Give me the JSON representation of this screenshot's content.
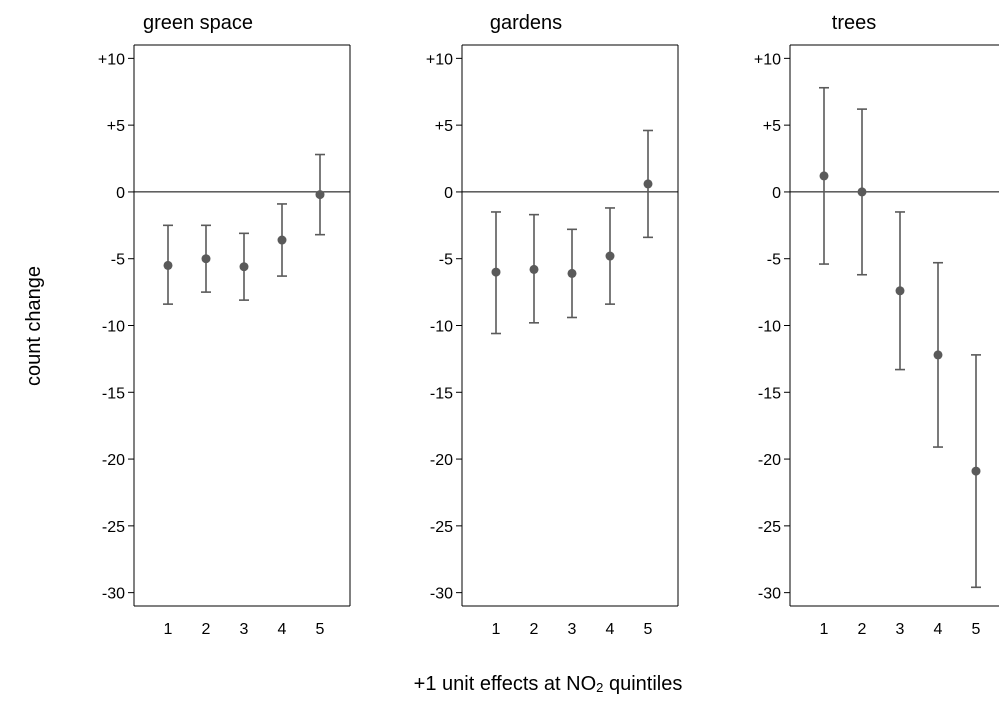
{
  "chart_data": {
    "type": "scatter",
    "subtype": "point-with-error-bars",
    "ylabel": "count change",
    "xlabel_prefix": "+1 unit effects at NO",
    "xlabel_subscript": "2",
    "xlabel_suffix": " quintiles",
    "ylim": [
      -31,
      11
    ],
    "yticks": [
      10,
      5,
      0,
      -5,
      -10,
      -15,
      -20,
      -25,
      -30
    ],
    "ytick_labels": [
      "+10",
      "+5",
      "0",
      "-5",
      "-10",
      "-15",
      "-20",
      "-25",
      "-30"
    ],
    "x": [
      1,
      2,
      3,
      4,
      5
    ],
    "xtick_labels": [
      "1",
      "2",
      "3",
      "4",
      "5"
    ],
    "reference_line": 0,
    "colors": {
      "point": "#5a5a5a",
      "bar": "#5a5a5a",
      "axis": "#000000"
    },
    "panels": [
      {
        "title": "green space",
        "points": [
          {
            "x": 1,
            "y": -5.5,
            "low": -8.4,
            "high": -2.5
          },
          {
            "x": 2,
            "y": -5.0,
            "low": -7.5,
            "high": -2.5
          },
          {
            "x": 3,
            "y": -5.6,
            "low": -8.1,
            "high": -3.1
          },
          {
            "x": 4,
            "y": -3.6,
            "low": -6.3,
            "high": -0.9
          },
          {
            "x": 5,
            "y": -0.2,
            "low": -3.2,
            "high": 2.8
          }
        ]
      },
      {
        "title": "gardens",
        "points": [
          {
            "x": 1,
            "y": -6.0,
            "low": -10.6,
            "high": -1.5
          },
          {
            "x": 2,
            "y": -5.8,
            "low": -9.8,
            "high": -1.7
          },
          {
            "x": 3,
            "y": -6.1,
            "low": -9.4,
            "high": -2.8
          },
          {
            "x": 4,
            "y": -4.8,
            "low": -8.4,
            "high": -1.2
          },
          {
            "x": 5,
            "y": 0.6,
            "low": -3.4,
            "high": 4.6
          }
        ]
      },
      {
        "title": "trees",
        "points": [
          {
            "x": 1,
            "y": 1.2,
            "low": -5.4,
            "high": 7.8
          },
          {
            "x": 2,
            "y": 0.0,
            "low": -6.2,
            "high": 6.2
          },
          {
            "x": 3,
            "y": -7.4,
            "low": -13.3,
            "high": -1.5
          },
          {
            "x": 4,
            "y": -12.2,
            "low": -19.1,
            "high": -5.3
          },
          {
            "x": 5,
            "y": -20.9,
            "low": -29.6,
            "high": -12.2
          }
        ]
      }
    ]
  }
}
